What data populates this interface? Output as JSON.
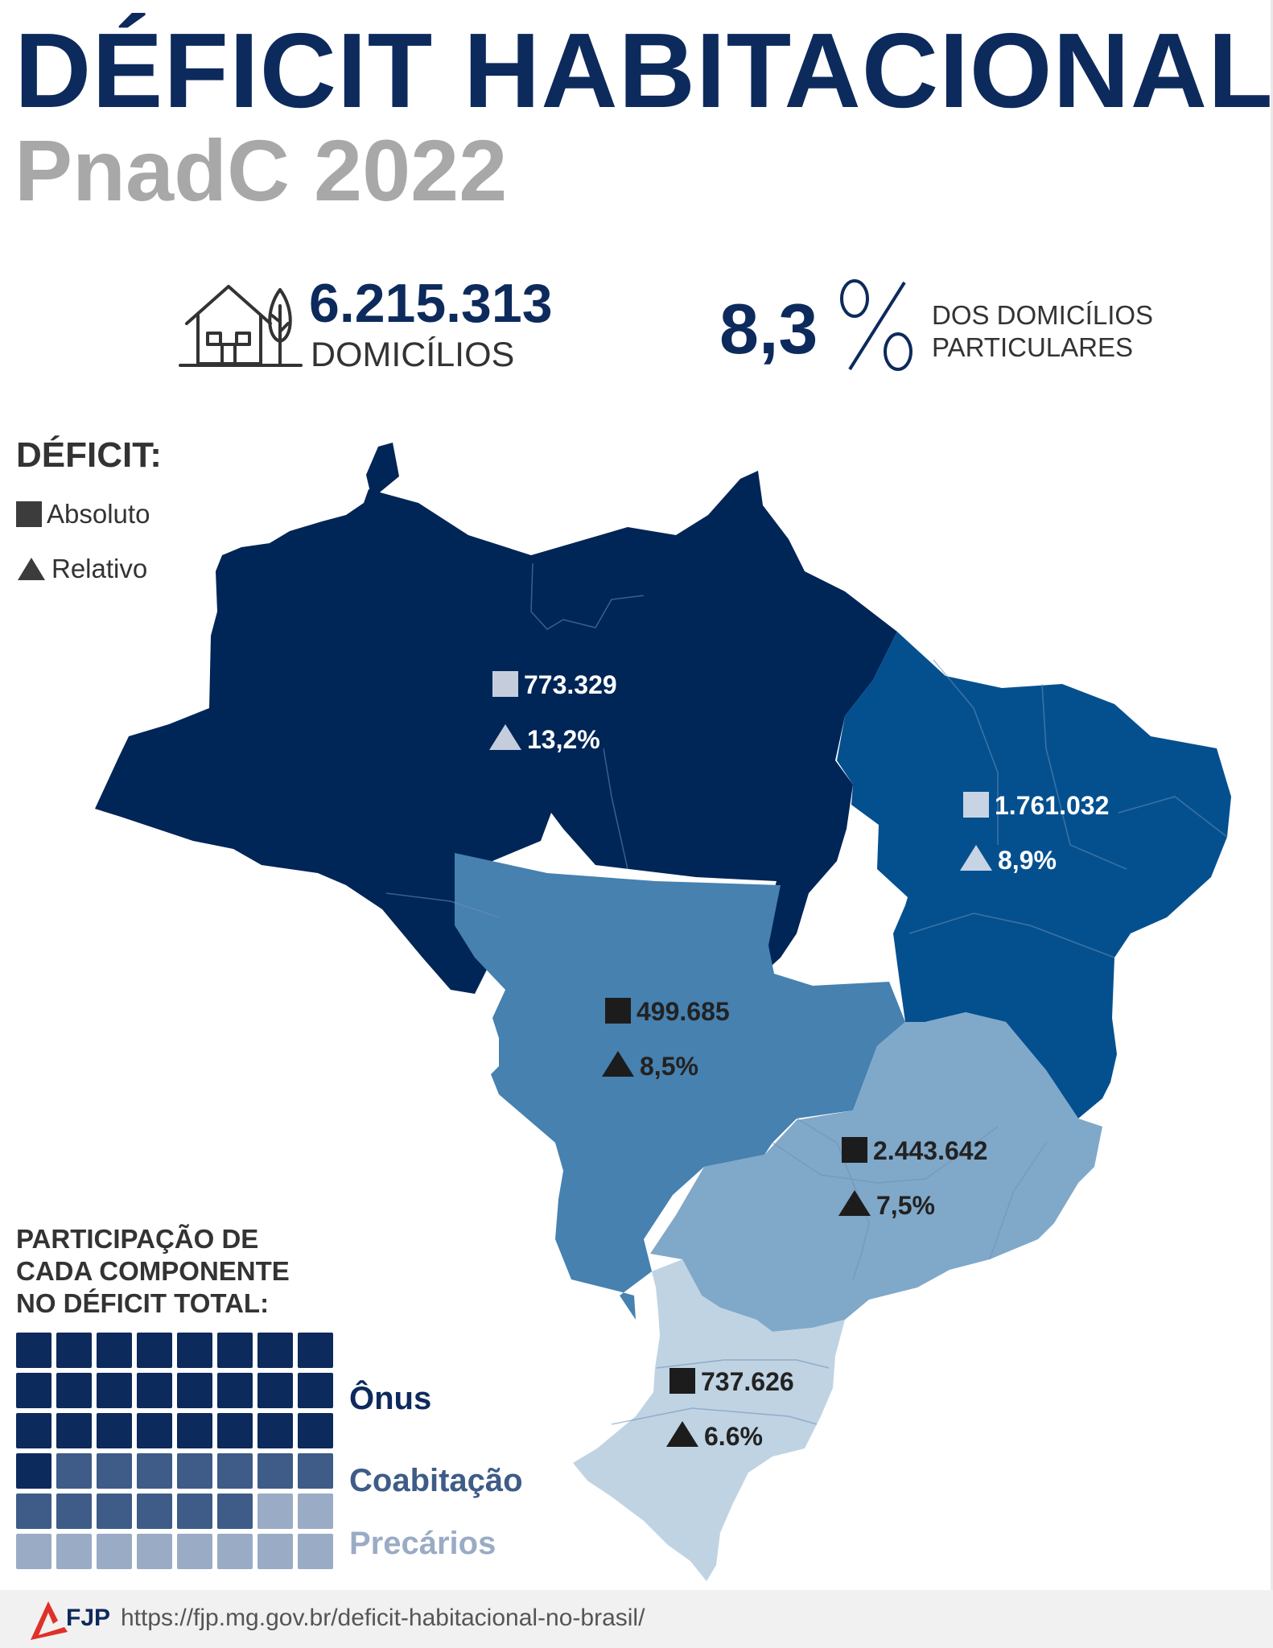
{
  "header": {
    "title": "DÉFICIT HABITACIONAL",
    "subtitle": "PnadC 2022"
  },
  "stats": {
    "households_value": "6.215.313",
    "households_label": "DOMICÍLIOS",
    "share_value": "8,3",
    "share_line1": "DOS DOMICÍLIOS",
    "share_line2": "PARTICULARES"
  },
  "legend": {
    "title": "DÉFICIT:",
    "absolute": "Absoluto",
    "relative": "Relativo"
  },
  "regions": [
    {
      "id": "norte",
      "absolute": "773.329",
      "relative": "13,2%",
      "fill": "#002557",
      "marker": "#c5cddd",
      "text": "#ffffff"
    },
    {
      "id": "nordeste",
      "absolute": "1.761.032",
      "relative": "8,9%",
      "fill": "#04508f",
      "marker": "#c8d4e4",
      "text": "#ffffff"
    },
    {
      "id": "centro-oeste",
      "absolute": "499.685",
      "relative": "8,5%",
      "fill": "#4681b0",
      "marker": "#1c1c1c",
      "text": "#222222"
    },
    {
      "id": "sudeste",
      "absolute": "2.443.642",
      "relative": "7,5%",
      "fill": "#80a8c9",
      "marker": "#1c1c1c",
      "text": "#222222"
    },
    {
      "id": "sul",
      "absolute": "737.626",
      "relative": "6.6%",
      "fill": "#bfd3e3",
      "marker": "#1c1c1c",
      "text": "#222222"
    }
  ],
  "participation": {
    "title_line1": "PARTICIPAÇÃO DE",
    "title_line2": "CADA COMPONENTE",
    "title_line3": "NO DÉFICIT TOTAL:",
    "grid": {
      "columns": 8,
      "rows": 6
    },
    "components": [
      {
        "name": "Ônus",
        "cells": 25,
        "color": "#0d2a5c"
      },
      {
        "name": "Coabitação",
        "cells": 13,
        "color": "#3e5c87"
      },
      {
        "name": "Precários",
        "cells": 10,
        "color": "#9aabc5"
      }
    ]
  },
  "footer": {
    "logo_text": "FJP",
    "url": "https://fjp.mg.gov.br/deficit-habitacional-no-brasil/"
  }
}
